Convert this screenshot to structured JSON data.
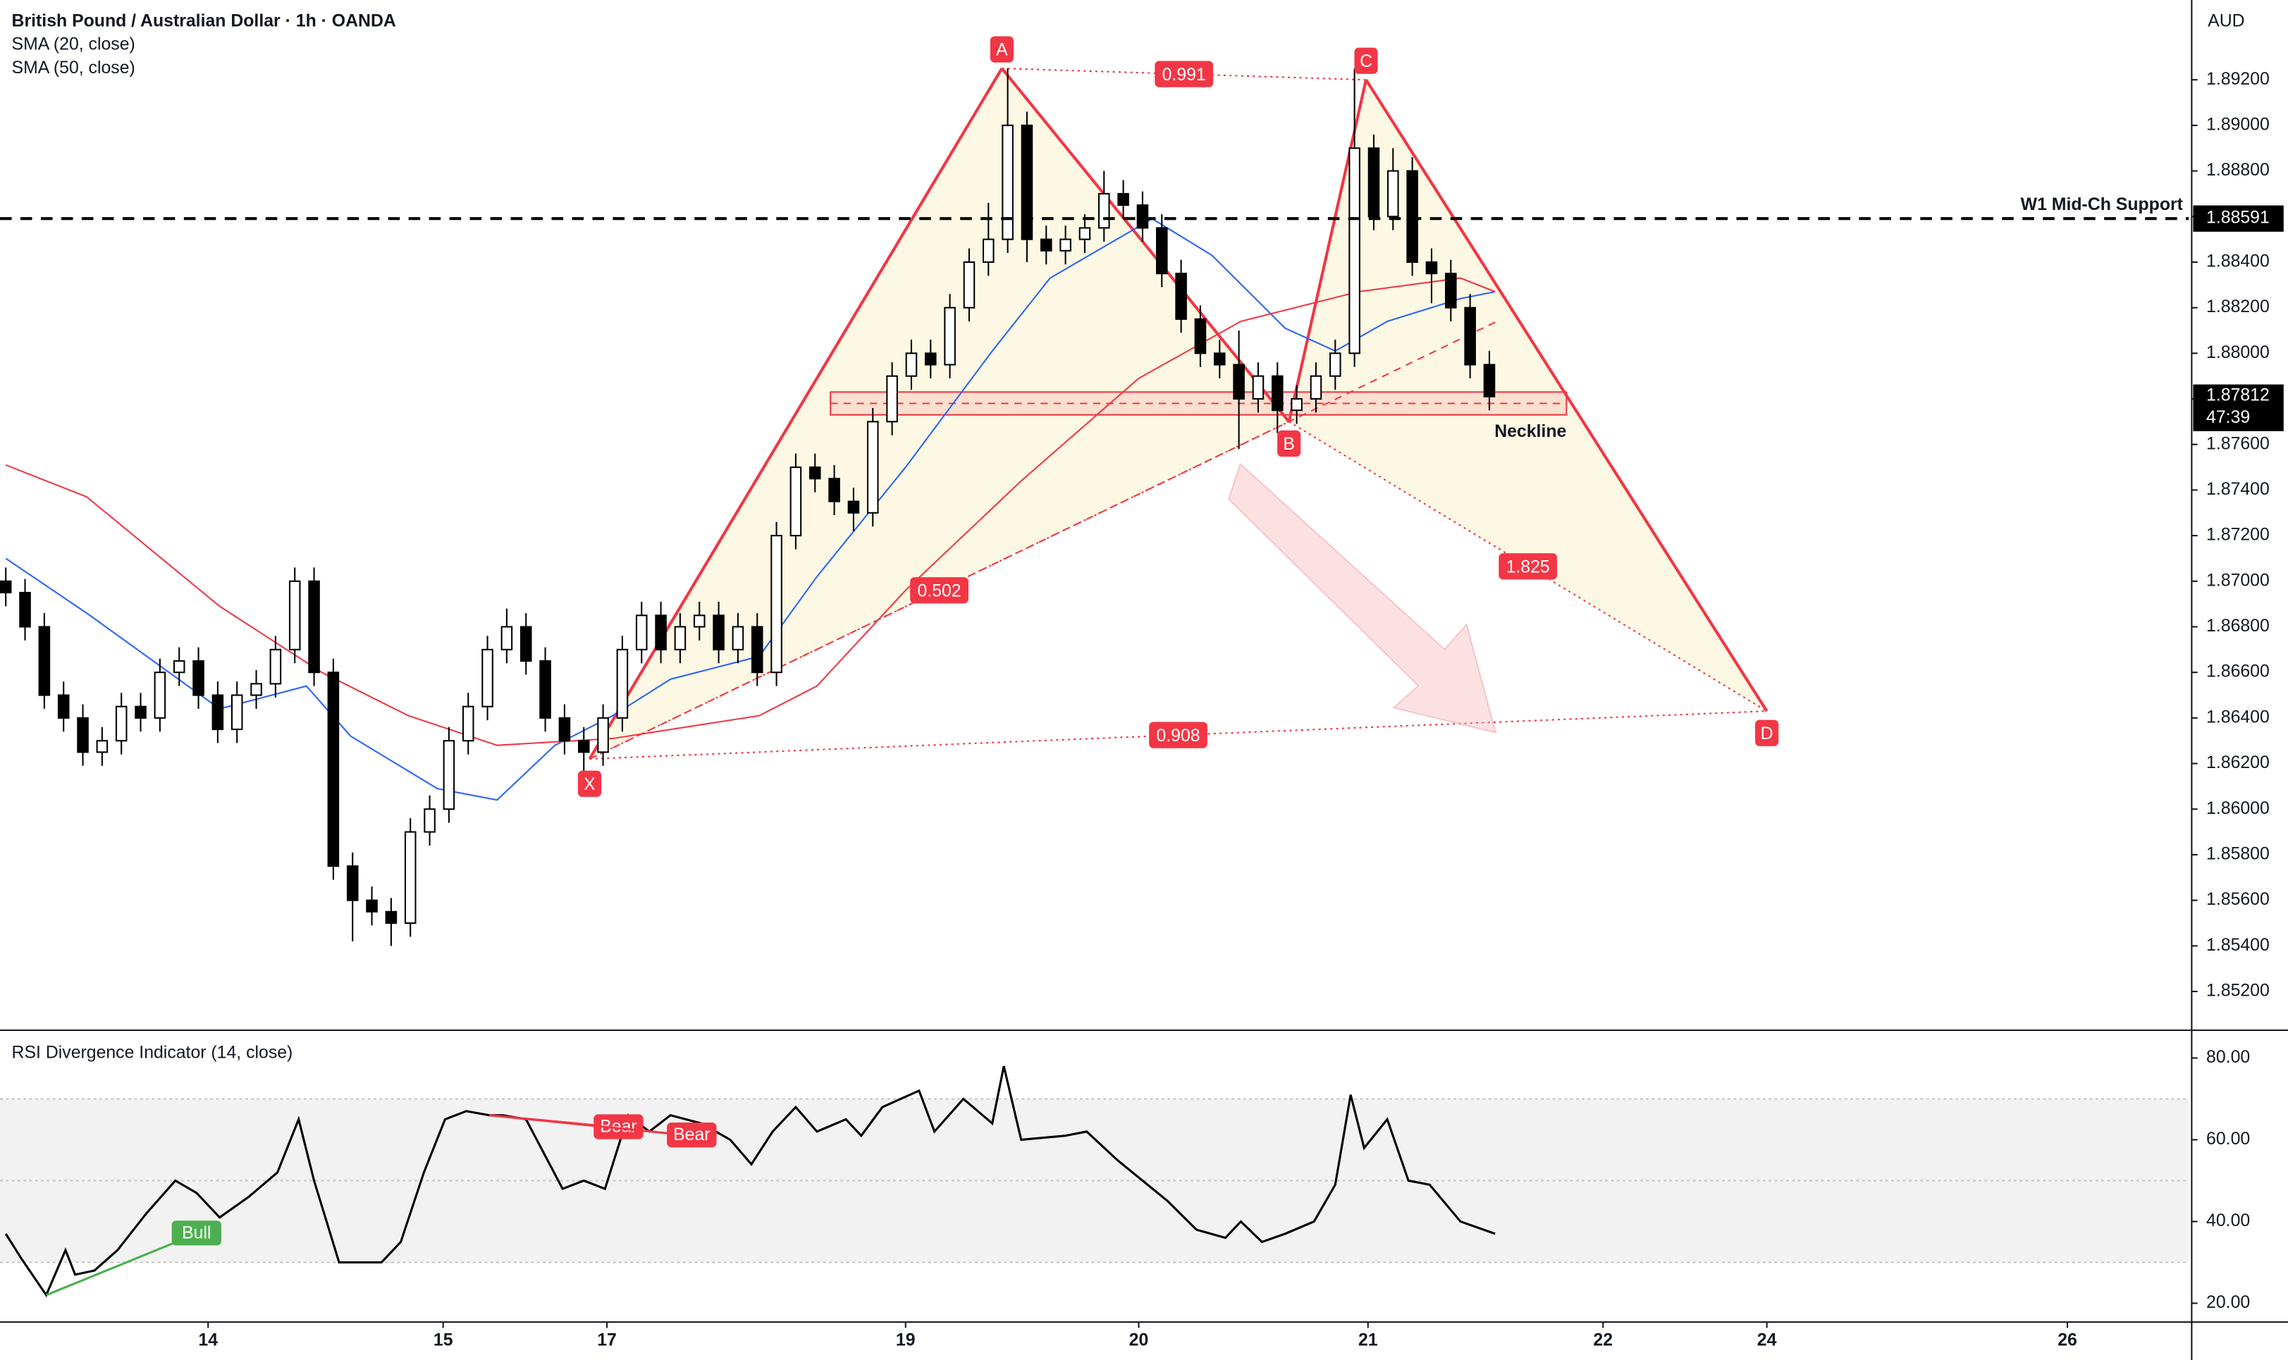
{
  "chart_data": {
    "type": "candlestick",
    "title": "British Pound / Australian Dollar · 1h · OANDA",
    "currency": "AUD",
    "up_color": "#ffffff",
    "down_color": "#000000",
    "x": [
      0,
      1,
      2,
      3,
      4,
      5,
      6,
      7,
      8,
      9,
      10,
      11,
      12,
      13,
      14,
      15,
      16,
      17,
      18,
      19,
      20,
      21,
      22,
      23,
      24,
      25,
      26,
      27,
      28,
      29,
      30,
      31,
      32,
      33,
      34,
      35,
      36,
      37,
      38,
      39,
      40,
      41,
      42,
      43,
      44,
      45,
      46,
      47,
      48,
      49,
      50,
      51,
      52,
      53,
      54,
      55,
      56,
      57,
      58,
      59,
      60,
      61,
      62,
      63,
      64,
      65,
      66,
      67,
      68,
      69,
      70,
      71,
      72,
      73,
      74,
      75,
      76,
      77
    ],
    "open": [
      1.87,
      1.8695,
      1.868,
      1.865,
      1.864,
      1.8625,
      1.863,
      1.8645,
      1.864,
      1.866,
      1.8665,
      1.865,
      1.8635,
      1.865,
      1.8655,
      1.867,
      1.87,
      1.866,
      1.8575,
      1.856,
      1.8555,
      1.855,
      1.859,
      1.86,
      1.863,
      1.8645,
      1.867,
      1.868,
      1.8665,
      1.864,
      1.863,
      1.8625,
      1.864,
      1.867,
      1.8685,
      1.867,
      1.868,
      1.8685,
      1.867,
      1.868,
      1.866,
      1.872,
      1.875,
      1.8745,
      1.8735,
      1.873,
      1.877,
      1.879,
      1.88,
      1.8795,
      1.882,
      1.884,
      1.885,
      1.89,
      1.885,
      1.8845,
      1.885,
      1.8855,
      1.887,
      1.8865,
      1.8855,
      1.8835,
      1.8815,
      1.88,
      1.8795,
      1.878,
      1.879,
      1.8775,
      1.878,
      1.879,
      1.88,
      1.889,
      1.886,
      1.888,
      1.884,
      1.8835,
      1.882,
      1.8795
    ],
    "high": [
      1.8706,
      1.8701,
      1.8686,
      1.8656,
      1.8646,
      1.8636,
      1.8651,
      1.8651,
      1.8666,
      1.8671,
      1.8671,
      1.8656,
      1.8656,
      1.8661,
      1.8676,
      1.8706,
      1.8706,
      1.8666,
      1.8581,
      1.8566,
      1.8561,
      1.8596,
      1.8606,
      1.8636,
      1.8651,
      1.8676,
      1.8688,
      1.8686,
      1.8671,
      1.8646,
      1.8636,
      1.8646,
      1.8676,
      1.8691,
      1.8691,
      1.8686,
      1.8691,
      1.8691,
      1.8686,
      1.8686,
      1.8726,
      1.8756,
      1.8756,
      1.8751,
      1.8741,
      1.8776,
      1.8796,
      1.8806,
      1.8806,
      1.8826,
      1.8846,
      1.8866,
      1.8925,
      1.8906,
      1.8856,
      1.8856,
      1.8861,
      1.888,
      1.8876,
      1.8871,
      1.8861,
      1.8841,
      1.8821,
      1.8806,
      1.881,
      1.8796,
      1.8796,
      1.8786,
      1.8796,
      1.8806,
      1.8925,
      1.8896,
      1.889,
      1.8886,
      1.8846,
      1.8841,
      1.8826,
      1.8801
    ],
    "low": [
      1.8689,
      1.8674,
      1.8644,
      1.8634,
      1.8619,
      1.8619,
      1.8624,
      1.8634,
      1.8634,
      1.8654,
      1.8644,
      1.8629,
      1.8629,
      1.8644,
      1.8649,
      1.8664,
      1.8654,
      1.8569,
      1.8542,
      1.8549,
      1.854,
      1.8544,
      1.8584,
      1.8594,
      1.8624,
      1.8639,
      1.8664,
      1.8659,
      1.8634,
      1.8624,
      1.8614,
      1.8619,
      1.8634,
      1.8664,
      1.8664,
      1.8664,
      1.8674,
      1.8664,
      1.8664,
      1.8654,
      1.8654,
      1.8714,
      1.8739,
      1.8729,
      1.8722,
      1.8724,
      1.8764,
      1.8784,
      1.8789,
      1.8789,
      1.8814,
      1.8834,
      1.8844,
      1.884,
      1.8839,
      1.8839,
      1.8844,
      1.8849,
      1.8859,
      1.8849,
      1.8829,
      1.8809,
      1.8794,
      1.8789,
      1.8758,
      1.8774,
      1.8765,
      1.8769,
      1.8774,
      1.8784,
      1.8794,
      1.8854,
      1.8854,
      1.8834,
      1.8822,
      1.8814,
      1.8789,
      1.8775
    ],
    "close": [
      1.8695,
      1.868,
      1.865,
      1.864,
      1.8625,
      1.863,
      1.8645,
      1.864,
      1.866,
      1.8665,
      1.865,
      1.8635,
      1.865,
      1.8655,
      1.867,
      1.87,
      1.866,
      1.8575,
      1.856,
      1.8555,
      1.855,
      1.859,
      1.86,
      1.863,
      1.8645,
      1.867,
      1.868,
      1.8665,
      1.864,
      1.863,
      1.8625,
      1.864,
      1.867,
      1.8685,
      1.867,
      1.868,
      1.8685,
      1.867,
      1.868,
      1.866,
      1.872,
      1.875,
      1.8745,
      1.8735,
      1.873,
      1.877,
      1.879,
      1.88,
      1.8795,
      1.882,
      1.884,
      1.885,
      1.89,
      1.885,
      1.8845,
      1.885,
      1.8855,
      1.887,
      1.8865,
      1.8855,
      1.8835,
      1.8815,
      1.88,
      1.8795,
      1.878,
      1.879,
      1.8775,
      1.878,
      1.879,
      1.88,
      1.889,
      1.886,
      1.888,
      1.884,
      1.8835,
      1.882,
      1.8795,
      1.8781
    ],
    "series": [
      {
        "name": "SMA (20, close)",
        "color": "#2962ff",
        "x": [
          0,
          4.2,
          11.1,
          15.6,
          17.9,
          22.4,
          25.5,
          28.5,
          31.5,
          34.5,
          39.1,
          42.1,
          46.7,
          51.2,
          54.2,
          59.5,
          62.6,
          66.4,
          69.0,
          71.7,
          75.5,
          77.3
        ],
        "values": [
          1.871,
          1.8686,
          1.8644,
          1.8654,
          1.8632,
          1.8609,
          1.8604,
          1.8628,
          1.8641,
          1.8657,
          1.8667,
          1.8702,
          1.875,
          1.8801,
          1.8833,
          1.8859,
          1.8843,
          1.8811,
          1.8801,
          1.8814,
          1.8824,
          1.8827
        ]
      },
      {
        "name": "SMA (50, close)",
        "color": "#f23645",
        "x": [
          0,
          4.2,
          11.1,
          16.4,
          20.9,
          25.5,
          31.5,
          39.1,
          42.1,
          46.7,
          52.7,
          58.8,
          64.1,
          70.2,
          75.5,
          77.3
        ],
        "values": [
          1.8751,
          1.8737,
          1.8689,
          1.866,
          1.8641,
          1.8628,
          1.8631,
          1.8641,
          1.8654,
          1.8696,
          1.8744,
          1.8789,
          1.8814,
          1.8827,
          1.8833,
          1.8827
        ]
      }
    ],
    "xlim": [
      -0.3,
      113.3
    ],
    "xticks": [
      {
        "value": 10.5,
        "label": "14"
      },
      {
        "value": 22.7,
        "label": "15"
      },
      {
        "value": 31.2,
        "label": "17"
      },
      {
        "value": 46.7,
        "label": "19"
      },
      {
        "value": 58.8,
        "label": "20"
      },
      {
        "value": 70.7,
        "label": "21"
      },
      {
        "value": 82.9,
        "label": "22"
      },
      {
        "value": 91.4,
        "label": "24"
      },
      {
        "value": 107.0,
        "label": "26"
      }
    ],
    "ylim": [
      1.8503,
      1.8955
    ],
    "yticks": [
      {
        "value": 1.852,
        "label": "1.85200"
      },
      {
        "value": 1.854,
        "label": "1.85400"
      },
      {
        "value": 1.856,
        "label": "1.85600"
      },
      {
        "value": 1.858,
        "label": "1.85800"
      },
      {
        "value": 1.86,
        "label": "1.86000"
      },
      {
        "value": 1.862,
        "label": "1.86200"
      },
      {
        "value": 1.864,
        "label": "1.86400"
      },
      {
        "value": 1.866,
        "label": "1.86600"
      },
      {
        "value": 1.868,
        "label": "1.86800"
      },
      {
        "value": 1.87,
        "label": "1.87000"
      },
      {
        "value": 1.872,
        "label": "1.87200"
      },
      {
        "value": 1.874,
        "label": "1.87400"
      },
      {
        "value": 1.876,
        "label": "1.87600"
      },
      {
        "value": 1.878,
        "label": "1.87800"
      },
      {
        "value": 1.88,
        "label": "1.88000"
      },
      {
        "value": 1.882,
        "label": "1.88200"
      },
      {
        "value": 1.884,
        "label": "1.88400"
      },
      {
        "value": 1.886,
        "label": "1.88600"
      },
      {
        "value": 1.888,
        "label": "1.88800"
      },
      {
        "value": 1.89,
        "label": "1.89000"
      },
      {
        "value": 1.892,
        "label": "1.89200"
      }
    ],
    "horizontal_line": {
      "value": 1.88591,
      "label": "W1 Mid-Ch Support",
      "value_label": "1.88591"
    },
    "last_price": {
      "value": 1.87812,
      "label": "1.87812",
      "countdown": "47:39"
    },
    "pattern": {
      "color": "#f23645",
      "points": [
        {
          "label": "X",
          "x": 30.3,
          "y": 1.8622
        },
        {
          "label": "A",
          "x": 51.7,
          "y": 1.8925
        },
        {
          "label": "B",
          "x": 66.6,
          "y": 1.877
        },
        {
          "label": "C",
          "x": 70.6,
          "y": 1.892
        },
        {
          "label": "D",
          "x": 91.4,
          "y": 1.8643
        }
      ],
      "ratios": [
        0.991,
        0.502,
        1.825,
        0.908
      ]
    },
    "neckline": {
      "label": "Neckline",
      "top": 1.8783,
      "bottom": 1.8773,
      "x": [
        42.8,
        81.0
      ]
    },
    "rsi": {
      "title": "RSI Divergence Indicator (14, close)",
      "color": "#000000",
      "x": [
        0,
        0.8,
        2.1,
        3.1,
        3.6,
        4.6,
        5.8,
        7.3,
        8.8,
        9.9,
        11.1,
        12.6,
        14.1,
        15.2,
        16.0,
        17.3,
        18.6,
        19.5,
        20.5,
        21.7,
        22.8,
        23.9,
        25.1,
        25.8,
        27.0,
        28.9,
        30.0,
        31.1,
        32.3,
        33.4,
        34.5,
        36.1,
        37.6,
        38.7,
        39.8,
        41.0,
        42.1,
        43.6,
        44.4,
        45.5,
        47.4,
        48.2,
        49.7,
        51.2,
        51.8,
        52.7,
        55.0,
        56.1,
        57.7,
        60.3,
        61.8,
        63.3,
        64.1,
        65.2,
        66.4,
        67.9,
        69.0,
        69.8,
        70.5,
        71.7,
        72.8,
        73.9,
        75.5,
        77.3
      ],
      "values": [
        37,
        31,
        22,
        33,
        27,
        28,
        33,
        42,
        50,
        47,
        41,
        46,
        52,
        65,
        50,
        30,
        30,
        30,
        35,
        52,
        65,
        67,
        66,
        66,
        65,
        48,
        50,
        48,
        66,
        62,
        66,
        64,
        60,
        54,
        62,
        68,
        62,
        65,
        61,
        68,
        72,
        62,
        70,
        64,
        78,
        60,
        61,
        62,
        55,
        45,
        38,
        36,
        40,
        35,
        37,
        40,
        49,
        71,
        58,
        65,
        50,
        49,
        40,
        37
      ],
      "ylim": [
        15.4,
        86.8
      ],
      "yticks": [
        {
          "value": 20,
          "label": "20.00"
        },
        {
          "value": 40,
          "label": "40.00"
        },
        {
          "value": 60,
          "label": "60.00"
        },
        {
          "value": 80,
          "label": "80.00"
        }
      ],
      "band": [
        30,
        70
      ],
      "midline": 50,
      "divergences": [
        {
          "label": "Bull",
          "color": "#4caf50",
          "x": [
            2.1,
            9.9
          ],
          "values": [
            22,
            37
          ]
        },
        {
          "label": "Bear",
          "color": "#f23645",
          "x": [
            25.1,
            31.8
          ],
          "values": [
            66,
            63
          ]
        },
        {
          "label": "Bear",
          "color": "#f23645",
          "x": [
            25.1,
            35.6
          ],
          "values": [
            66,
            61
          ]
        }
      ]
    }
  }
}
